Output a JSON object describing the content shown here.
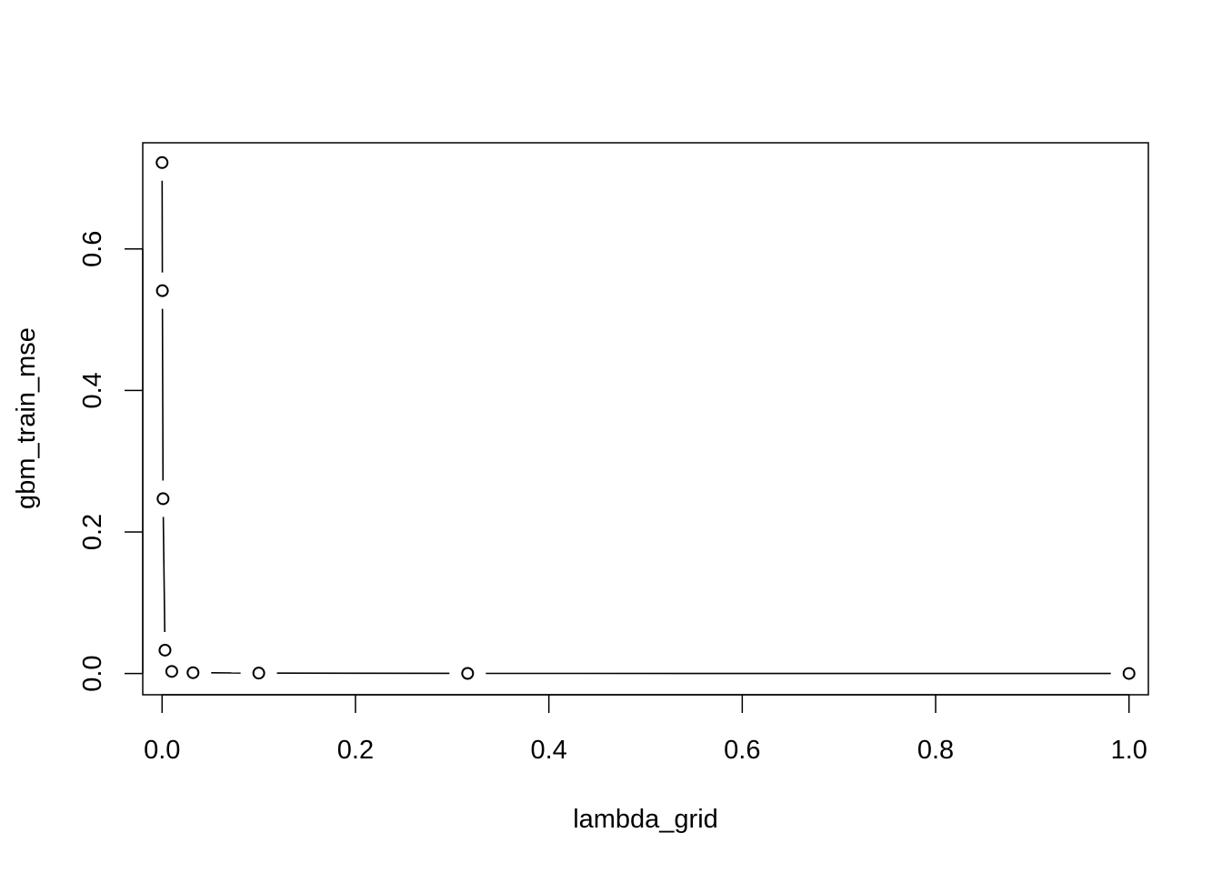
{
  "chart_data": {
    "type": "line",
    "style": "points-and-lines",
    "xlabel": "lambda_grid",
    "ylabel": "gbm_train_mse",
    "xlim": [
      -0.02,
      1.02
    ],
    "ylim": [
      -0.03,
      0.75
    ],
    "x_ticks": [
      {
        "value": 0.0,
        "label": "0.0"
      },
      {
        "value": 0.2,
        "label": "0.2"
      },
      {
        "value": 0.4,
        "label": "0.4"
      },
      {
        "value": 0.6,
        "label": "0.6"
      },
      {
        "value": 0.8,
        "label": "0.8"
      },
      {
        "value": 1.0,
        "label": "1.0"
      }
    ],
    "y_ticks": [
      {
        "value": 0.0,
        "label": "0.0"
      },
      {
        "value": 0.2,
        "label": "0.2"
      },
      {
        "value": 0.4,
        "label": "0.4"
      },
      {
        "value": 0.6,
        "label": "0.6"
      }
    ],
    "grid": false,
    "series": [
      {
        "x": [
          0.0,
          0.0003,
          0.001,
          0.003,
          0.01,
          0.032,
          0.1,
          0.316,
          1.0
        ],
        "y": [
          0.722,
          0.541,
          0.247,
          0.033,
          0.003,
          0.0012,
          0.0006,
          0.0002,
          0.0001
        ]
      }
    ],
    "colors": {
      "line": "#000000",
      "point_fill": "#ffffff",
      "point_stroke": "#000000"
    }
  }
}
